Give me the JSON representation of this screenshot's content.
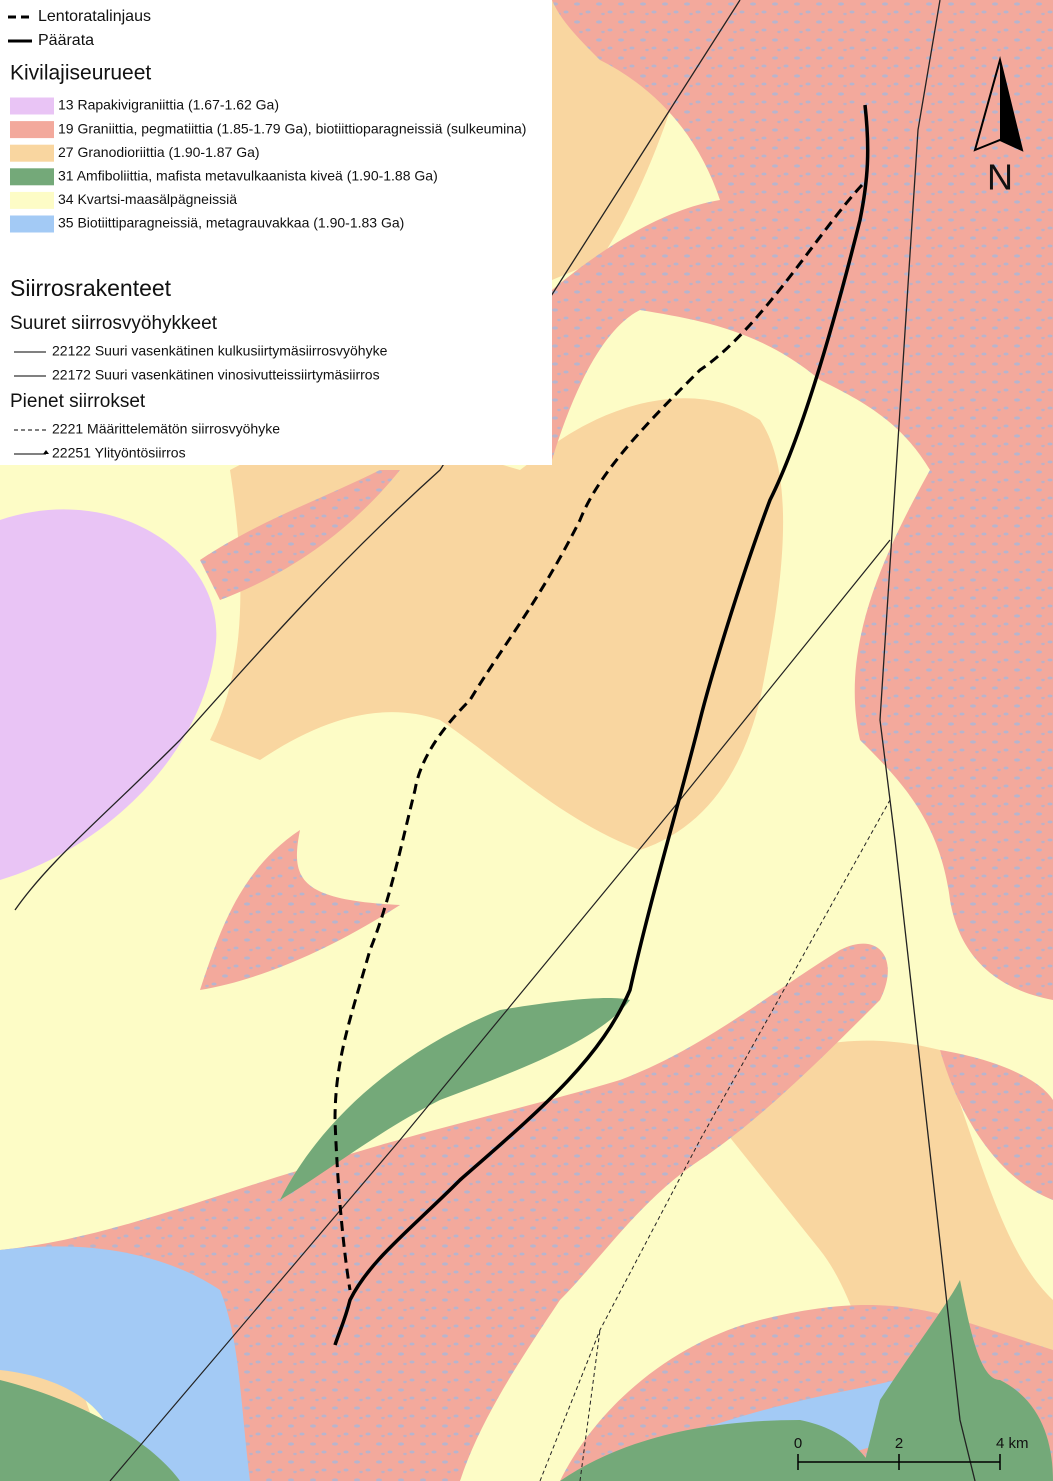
{
  "legend": {
    "route_lines": [
      {
        "label": "Lentoratalinjaus",
        "style": "dashed"
      },
      {
        "label": "Päärata",
        "style": "solid"
      }
    ],
    "rock_units": {
      "title": "Kivilajiseurueet",
      "items": [
        {
          "label": "13 Rapakivigraniittia (1.67-1.62 Ga)",
          "color": "#e9c4f5"
        },
        {
          "label": "19 Graniittia, pegmatiittia (1.85-1.79 Ga), biotiittioparagneissiä (sulkeumina)",
          "color": "#f3a99c"
        },
        {
          "label": "27 Granodioriittia (1.90-1.87 Ga)",
          "color": "#f9d6a0"
        },
        {
          "label": "31 Amfiboliittia, mafista metavulkaanista kiveä (1.90-1.88 Ga)",
          "color": "#74a979"
        },
        {
          "label": "34 Kvartsi-maasälpägneissiä",
          "color": "#fdfcc6"
        },
        {
          "label": "35 Biotiittiparagneissiä, metagrauvakkaa (1.90-1.83 Ga)",
          "color": "#a3caf5"
        }
      ]
    },
    "faults": {
      "title": "Siirrosrakenteet",
      "groups": [
        {
          "title": "Suuret siirrosvyöhykkeet",
          "items": [
            {
              "label": "22122 Suuri vasenkätinen kulkusiirtymäsiirrosvyöhyke",
              "style": "solid"
            },
            {
              "label": "22172 Suuri vasenkätinen vinosivutteissiirtymäsiirros",
              "style": "solid"
            }
          ]
        },
        {
          "title": "Pienet siirrokset",
          "items": [
            {
              "label": "2221 Määrittelemätön siirrosvyöhyke",
              "style": "dashed"
            },
            {
              "label": "22251 Ylityöntösiirros",
              "style": "thrust"
            }
          ]
        }
      ]
    }
  },
  "north_arrow": "N",
  "scale_bar": {
    "labels": [
      "0",
      "2",
      "4 km"
    ]
  }
}
